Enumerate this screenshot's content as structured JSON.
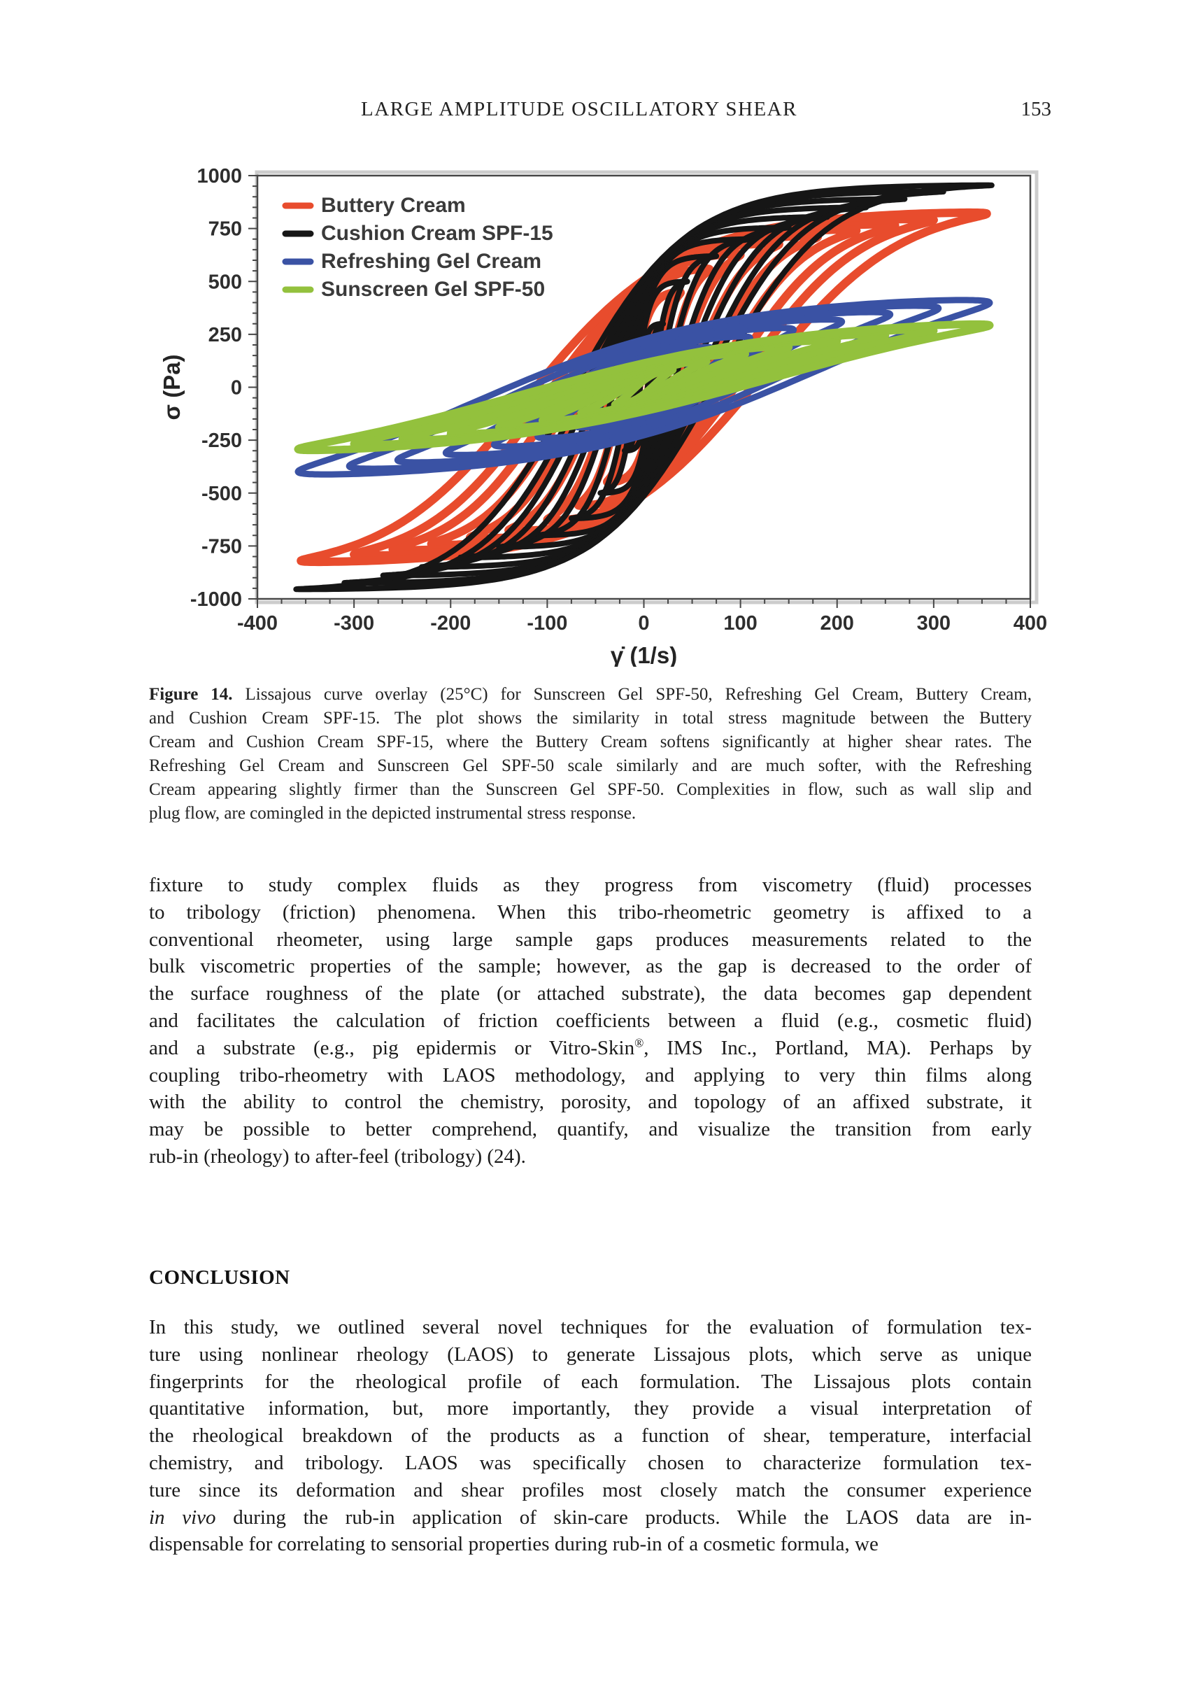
{
  "header": {
    "title": "LARGE AMPLITUDE OSCILLATORY SHEAR",
    "page_number": "153"
  },
  "chart_data": {
    "type": "line",
    "description": "Lissajous stress vs shear-rate loop overlay at 25C; nested hysteresis loops per formulation",
    "xlabel": "γ̇  (1/s)",
    "ylabel": "σ  (Pa)",
    "xlim": [
      -400,
      400
    ],
    "ylim": [
      -1000,
      1000
    ],
    "x_ticks": [
      -400,
      -300,
      -200,
      -100,
      0,
      100,
      200,
      300,
      400
    ],
    "y_ticks": [
      1000,
      750,
      500,
      250,
      0,
      -250,
      -500,
      -750,
      -1000
    ],
    "x_minor_step": 25,
    "y_minor_step": 50,
    "grid": false,
    "legend_position": "upper-left-inside",
    "frame_color": "#474747",
    "frame_shadow_color": "#cccccc",
    "tick_text_color": "#2e2e2e",
    "series": [
      {
        "name": "Buttery Cream",
        "color": "#e84c2d",
        "stroke_width": 12,
        "shape": {
          "k": 2.2,
          "phi": 0.32
        },
        "loops": [
          {
            "rate_amplitude": 16,
            "stress_amplitude": 280
          },
          {
            "rate_amplitude": 38,
            "stress_amplitude": 450
          },
          {
            "rate_amplitude": 68,
            "stress_amplitude": 560
          },
          {
            "rate_amplitude": 100,
            "stress_amplitude": 630
          },
          {
            "rate_amplitude": 140,
            "stress_amplitude": 680
          },
          {
            "rate_amplitude": 180,
            "stress_amplitude": 715
          },
          {
            "rate_amplitude": 220,
            "stress_amplitude": 745
          },
          {
            "rate_amplitude": 260,
            "stress_amplitude": 770
          },
          {
            "rate_amplitude": 300,
            "stress_amplitude": 795
          },
          {
            "rate_amplitude": 355,
            "stress_amplitude": 825
          }
        ]
      },
      {
        "name": "Cushion Cream SPF-15",
        "color": "#161616",
        "stroke_width": 8,
        "shape": {
          "k": 3.0,
          "phi": 0.2
        },
        "loops": [
          {
            "rate_amplitude": 20,
            "stress_amplitude": 300
          },
          {
            "rate_amplitude": 45,
            "stress_amplitude": 500
          },
          {
            "rate_amplitude": 75,
            "stress_amplitude": 620
          },
          {
            "rate_amplitude": 110,
            "stress_amplitude": 700
          },
          {
            "rate_amplitude": 150,
            "stress_amplitude": 755
          },
          {
            "rate_amplitude": 190,
            "stress_amplitude": 805
          },
          {
            "rate_amplitude": 230,
            "stress_amplitude": 850
          },
          {
            "rate_amplitude": 270,
            "stress_amplitude": 890
          },
          {
            "rate_amplitude": 310,
            "stress_amplitude": 925
          },
          {
            "rate_amplitude": 360,
            "stress_amplitude": 955
          }
        ]
      },
      {
        "name": "Refreshing Gel Cream",
        "color": "#3a52a4",
        "stroke_width": 9,
        "shape": {
          "k": 1.35,
          "phi": 0.4
        },
        "loops": [
          {
            "rate_amplitude": 35,
            "stress_amplitude": 130
          },
          {
            "rate_amplitude": 70,
            "stress_amplitude": 190
          },
          {
            "rate_amplitude": 110,
            "stress_amplitude": 240
          },
          {
            "rate_amplitude": 155,
            "stress_amplitude": 280
          },
          {
            "rate_amplitude": 205,
            "stress_amplitude": 320
          },
          {
            "rate_amplitude": 255,
            "stress_amplitude": 355
          },
          {
            "rate_amplitude": 305,
            "stress_amplitude": 385
          },
          {
            "rate_amplitude": 358,
            "stress_amplitude": 412
          }
        ]
      },
      {
        "name": "Sunscreen Gel SPF-50",
        "color": "#93c13d",
        "stroke_width": 11,
        "shape": {
          "k": 1.2,
          "phi": 0.28
        },
        "loops": [
          {
            "rate_amplitude": 30,
            "stress_amplitude": 85
          },
          {
            "rate_amplitude": 65,
            "stress_amplitude": 125
          },
          {
            "rate_amplitude": 105,
            "stress_amplitude": 160
          },
          {
            "rate_amplitude": 150,
            "stress_amplitude": 193
          },
          {
            "rate_amplitude": 200,
            "stress_amplitude": 222
          },
          {
            "rate_amplitude": 250,
            "stress_amplitude": 250
          },
          {
            "rate_amplitude": 300,
            "stress_amplitude": 272
          },
          {
            "rate_amplitude": 358,
            "stress_amplitude": 298
          }
        ]
      }
    ]
  },
  "figure": {
    "caption_lines": [
      [
        {
          "t": "Figure 14.",
          "b": 1
        },
        {
          "t": "  Lissajous curve overlay (25°C) for Sunscreen Gel SPF-50, Refreshing Gel Cream, Buttery Cream,"
        }
      ],
      [
        {
          "t": "and Cushion Cream SPF-15. The plot shows the similarity in total stress magnitude between the Buttery"
        }
      ],
      [
        {
          "t": "Cream and Cushion Cream SPF-15, where the Buttery Cream softens significantly at higher shear rates. The"
        }
      ],
      [
        {
          "t": "Refreshing Gel Cream and Sunscreen Gel SPF-50 scale similarly and are much softer, with the Refreshing"
        }
      ],
      [
        {
          "t": "Cream appearing slightly firmer than the Sunscreen Gel SPF-50. Complexities in flow, such as wall slip and"
        }
      ],
      [
        {
          "t": "plug flow, are comingled in the depicted instrumental stress response."
        }
      ]
    ]
  },
  "body": {
    "paragraph1_lines": [
      [
        {
          "t": "fixture to study complex fluids as they progress from viscometry (fluid) processes"
        }
      ],
      [
        {
          "t": "to tribology (friction) phenomena. When this tribo-rheometric geometry is affixed to a"
        }
      ],
      [
        {
          "t": "conventional rheometer, using large sample gaps produces measurements related to the"
        }
      ],
      [
        {
          "t": "bulk viscometric properties of the sample; however, as the gap is decreased to the order of"
        }
      ],
      [
        {
          "t": "the surface roughness of the plate (or attached substrate), the data becomes gap dependent"
        }
      ],
      [
        {
          "t": "and facilitates the calculation of friction coefficients between a fluid (e.g., cosmetic fluid)"
        }
      ],
      [
        {
          "t": "and a substrate (e.g., pig epidermis or Vitro-Skin"
        },
        {
          "t": "®",
          "sup": 1
        },
        {
          "t": ", IMS Inc., Portland, MA). Perhaps by"
        }
      ],
      [
        {
          "t": "coupling tribo-rheometry with LAOS methodology, and applying to very thin films along"
        }
      ],
      [
        {
          "t": "with the ability to control the chemistry, porosity, and topology of an affixed substrate, it"
        }
      ],
      [
        {
          "t": "may be possible to better comprehend, quantify, and visualize the transition from early"
        }
      ],
      [
        {
          "t": "rub-in (rheology) to after-feel (tribology) (24)."
        }
      ]
    ],
    "conclusion_heading": "CONCLUSION",
    "paragraph2_lines": [
      [
        {
          "t": "In this study, we outlined several novel techniques for the evaluation of formulation tex-"
        }
      ],
      [
        {
          "t": "ture using nonlinear rheology (LAOS) to generate Lissajous plots, which serve as unique"
        }
      ],
      [
        {
          "t": "fingerprints for the rheological profile of each formulation. The Lissajous plots contain"
        }
      ],
      [
        {
          "t": "quantitative information, but, more importantly, they provide a visual interpretation of"
        }
      ],
      [
        {
          "t": "the rheological breakdown of the products as a function of shear, temperature, interfacial"
        }
      ],
      [
        {
          "t": "chemistry, and tribology. LAOS was specifically chosen to characterize formulation tex-"
        }
      ],
      [
        {
          "t": "ture since its deformation and shear profiles most closely match the consumer experience"
        }
      ],
      [
        {
          "t": "in vivo",
          "i": 1
        },
        {
          "t": " during the rub-in application of skin-care products. While the LAOS data are in-"
        }
      ],
      [
        {
          "t": "dispensable for correlating to sensorial properties during rub-in of a cosmetic formula, we"
        }
      ]
    ]
  }
}
